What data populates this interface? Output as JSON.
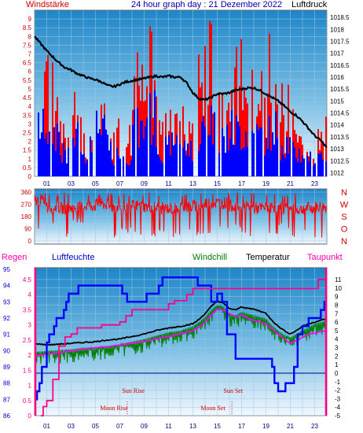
{
  "header": {
    "left_label": "Windstärke",
    "title": "24 hour graph day : 21 Dezember 2022",
    "right_label": "Luftdruck"
  },
  "compass": [
    "N",
    "W",
    "S",
    "O",
    "N"
  ],
  "legend": {
    "regen": "Regen",
    "luftfeuchte": "Luftfeuchte",
    "windchill": "Windchill",
    "temperatur": "Temperatur",
    "taupunkt": "Taupunkt"
  },
  "annotations": {
    "sun_rise": "Sun Rise",
    "sun_set": "Sun Set",
    "moon_rise": "Moon Rise",
    "moon_set": "Moon Set"
  },
  "colors": {
    "wind_gust": "#ff0000",
    "wind_avg": "#0000ff",
    "pressure": "#000000",
    "direction": "#ff0000",
    "humidity": "#0000ff",
    "temperature": "#000000",
    "windchill": "#008000",
    "dewpoint": "#ff00ff",
    "rain": "#ff0088",
    "rain_axis": "#ff0080",
    "annot": "#cc0000"
  },
  "chart_data": [
    {
      "type": "bar",
      "x_ticks": [
        "01",
        "03",
        "05",
        "07",
        "09",
        "11",
        "13",
        "15",
        "17",
        "19",
        "21",
        "23"
      ],
      "y_left_ticks": [
        "0",
        "0.5",
        "1",
        "1.5",
        "2",
        "2.5",
        "3",
        "3.5",
        "4",
        "4.5",
        "5",
        "5.5",
        "6",
        "6.5",
        "7",
        "7.5",
        "8",
        "8.5",
        "9"
      ],
      "y_right_ticks": [
        "1012",
        "1012.5",
        "1013",
        "1013.5",
        "1014",
        "1014.5",
        "1015",
        "1015.5",
        "1016",
        "1016.5",
        "1017",
        "1017.5",
        "1018",
        "1018.5"
      ],
      "ylim_left": [
        0,
        9.5
      ],
      "ylim_right": [
        1011.85,
        1018.8
      ],
      "xlim": [
        0,
        24
      ],
      "pressure_series": {
        "x": [
          0,
          0.5,
          1,
          1.5,
          2,
          2.5,
          3,
          3.5,
          4,
          4.5,
          5,
          5.5,
          6,
          6.5,
          7,
          7.5,
          8,
          8.5,
          9,
          9.5,
          10,
          10.5,
          11,
          11.5,
          12,
          12.5,
          13,
          13.5,
          14,
          14.5,
          15,
          15.5,
          16,
          16.5,
          17,
          17.5,
          18,
          18.5,
          19,
          19.5,
          20,
          20.5,
          21,
          21.5,
          22,
          22.5,
          23,
          23.5,
          24
        ],
        "y": [
          1017.7,
          1017.4,
          1017.1,
          1016.85,
          1016.6,
          1016.4,
          1016.3,
          1016.15,
          1016.05,
          1015.95,
          1015.9,
          1015.8,
          1015.65,
          1015.6,
          1015.7,
          1015.8,
          1015.85,
          1015.9,
          1015.95,
          1016.0,
          1016.05,
          1016.0,
          1016.05,
          1016.0,
          1016.0,
          1015.75,
          1015.35,
          1015.1,
          1015.05,
          1015.15,
          1015.3,
          1015.3,
          1015.35,
          1015.45,
          1015.5,
          1015.55,
          1015.55,
          1015.45,
          1015.3,
          1015.15,
          1015.0,
          1014.8,
          1014.55,
          1014.4,
          1014.15,
          1013.85,
          1013.55,
          1013.35,
          1013.05
        ]
      },
      "wind_gust_hourly_max": [
        9,
        7,
        3.5,
        5.5,
        4,
        6,
        3.5,
        3.5,
        8.5,
        9,
        4.5,
        6.5,
        4.5,
        8.5,
        9,
        6.5,
        9,
        9,
        6.5,
        9,
        5.5,
        4,
        3.5,
        3.5
      ],
      "wind_avg_hourly_max": [
        5,
        4,
        2,
        3.5,
        2.5,
        4,
        2,
        2,
        4,
        5,
        2.5,
        3.5,
        2.5,
        4,
        5,
        3.5,
        4,
        4,
        3.5,
        4,
        3,
        2,
        2,
        2
      ]
    },
    {
      "type": "line",
      "y_ticks": [
        "0",
        "90",
        "180",
        "270",
        "360"
      ],
      "ylim": [
        0,
        360
      ],
      "xlim": [
        0,
        24
      ],
      "direction_hourly_mean": [
        300,
        250,
        240,
        250,
        260,
        270,
        250,
        240,
        260,
        250,
        240,
        240,
        250,
        260,
        280,
        280,
        260,
        250,
        240,
        250,
        240,
        230,
        240,
        250
      ],
      "direction_hourly_min": [
        60,
        90,
        30,
        120,
        60,
        90,
        20,
        60,
        40,
        20,
        60,
        20,
        60,
        30,
        40,
        90,
        90,
        30,
        60,
        20,
        90,
        30,
        60,
        20
      ]
    },
    {
      "type": "line",
      "x_ticks": [
        "01",
        "03",
        "05",
        "07",
        "09",
        "11",
        "13",
        "15",
        "17",
        "19",
        "21",
        "23"
      ],
      "humidity_ticks": [
        "86",
        "87",
        "88",
        "89",
        "90",
        "91",
        "92",
        "93",
        "94",
        "95"
      ],
      "rain_ticks": [
        "0",
        "0.5",
        "1",
        "1.5",
        "2",
        "2.5",
        "3",
        "3.5",
        "4",
        "4.5"
      ],
      "temp_ticks": [
        "-5",
        "-4",
        "-3",
        "-2",
        "-1",
        "0",
        "1",
        "2",
        "3",
        "4",
        "5",
        "6",
        "7",
        "8",
        "9",
        "10",
        "11"
      ],
      "humidity_ylim": [
        86,
        95
      ],
      "rain_ylim": [
        0,
        4.5
      ],
      "temp_ylim": [
        -5,
        11
      ],
      "xlim": [
        0,
        24
      ],
      "humidity": {
        "x": [
          0,
          0.2,
          0.4,
          0.6,
          1.0,
          1.2,
          1.6,
          1.8,
          2.2,
          2.4,
          2.6,
          2.8,
          3.0,
          3.4,
          3.6,
          7.0,
          7.2,
          7.6,
          9.2,
          10.2,
          10.5,
          13.0,
          13.4,
          14.0,
          14.5,
          15.0,
          15.4,
          15.8,
          16.5,
          17.0,
          18.0,
          19.0,
          19.5,
          19.7,
          20.0,
          20.2,
          20.4,
          20.6,
          21.0,
          21.3,
          21.6,
          22.0,
          22.5,
          23.0,
          23.5,
          23.8,
          24.0
        ],
        "y": [
          87.0,
          87.5,
          88.0,
          89.0,
          90.5,
          91.0,
          91.5,
          92.0,
          92.0,
          92.5,
          93.0,
          93.5,
          93.5,
          93.5,
          94.0,
          94.0,
          93.5,
          93.0,
          93.5,
          94.0,
          94.5,
          94.5,
          94.0,
          94.0,
          93.0,
          93.5,
          93.0,
          91.0,
          89.5,
          89.5,
          89.5,
          89.5,
          89.0,
          88.0,
          87.5,
          87.5,
          87.5,
          88.0,
          88.0,
          89.0,
          91.0,
          91.5,
          92.0,
          92.0,
          92.5,
          93.0,
          93.0
        ]
      },
      "temperature": {
        "x": [
          0,
          1,
          2,
          3,
          4,
          5,
          6,
          7,
          8,
          9,
          10,
          11,
          12,
          13,
          13.5,
          14,
          14.5,
          15,
          15.5,
          16,
          16.5,
          17,
          17.5,
          18,
          18.5,
          19,
          19.5,
          20,
          20.5,
          21,
          21.5,
          22,
          22.5,
          23,
          23.5,
          24
        ],
        "y": [
          3.5,
          3.3,
          3.4,
          3.5,
          3.6,
          3.7,
          3.9,
          4.0,
          4.3,
          4.6,
          5.0,
          5.3,
          5.5,
          5.8,
          6.3,
          7.0,
          7.8,
          8.5,
          8.2,
          7.6,
          7.4,
          7.8,
          7.6,
          7.5,
          7.3,
          7.0,
          6.2,
          5.5,
          5.0,
          4.6,
          5.0,
          5.5,
          5.8,
          6.0,
          6.2,
          6.4
        ]
      },
      "windchill": {
        "x": [
          0,
          1,
          2,
          3,
          4,
          5,
          6,
          7,
          8,
          9,
          10,
          11,
          12,
          13,
          13.5,
          14,
          14.5,
          15,
          15.5,
          16,
          16.5,
          17,
          17.5,
          18,
          18.5,
          19,
          19.5,
          20,
          20.5,
          21,
          21.5,
          22,
          22.5,
          23,
          23.5,
          24
        ],
        "y": [
          2.5,
          2.6,
          2.7,
          2.8,
          3.0,
          3.0,
          3.2,
          3.4,
          3.7,
          4.0,
          4.4,
          4.8,
          5.0,
          5.5,
          6.0,
          6.6,
          7.4,
          8.0,
          7.8,
          7.0,
          6.8,
          7.2,
          7.0,
          6.8,
          6.6,
          6.4,
          5.6,
          5.0,
          4.5,
          4.2,
          4.6,
          5.0,
          5.4,
          5.8,
          6.0,
          6.2
        ]
      },
      "dewpoint": {
        "x": [
          0,
          1,
          2,
          3,
          4,
          5,
          6,
          7,
          8,
          9,
          10,
          11,
          12,
          13,
          13.5,
          14,
          14.5,
          15,
          15.5,
          16,
          16.5,
          17,
          17.5,
          18,
          18.5,
          19,
          19.5,
          20,
          20.5,
          21,
          21.5,
          22,
          22.5,
          23,
          23.5,
          24
        ],
        "y": [
          2.0,
          2.2,
          2.4,
          2.6,
          2.8,
          3.0,
          3.1,
          3.3,
          3.5,
          3.7,
          4.0,
          4.3,
          4.6,
          5.0,
          5.4,
          6.0,
          6.8,
          7.5,
          7.4,
          7.0,
          6.6,
          6.8,
          6.5,
          6.2,
          6.0,
          5.8,
          5.2,
          4.6,
          4.0,
          3.5,
          3.8,
          4.2,
          4.6,
          4.7,
          4.9,
          5.0
        ]
      },
      "rain": {
        "x": [
          0.5,
          0.7,
          1.0,
          1.5,
          2.0,
          2.5,
          3.0,
          3.5,
          5.0,
          5.5,
          6.0,
          7.0,
          7.5,
          8.0,
          10.0,
          11.0,
          11.5,
          12.0,
          12.5,
          13.0,
          14.0,
          16.0,
          18.0,
          20.0,
          22.0,
          23.0,
          23.3,
          24.0
        ],
        "y": [
          0.0,
          0.3,
          0.5,
          1.2,
          2.3,
          2.6,
          2.7,
          2.9,
          2.9,
          3.0,
          3.0,
          3.1,
          3.3,
          3.5,
          3.5,
          3.7,
          3.8,
          3.8,
          4.0,
          4.2,
          4.2,
          4.2,
          4.2,
          4.2,
          4.2,
          4.2,
          4.5,
          4.5
        ]
      }
    }
  ]
}
